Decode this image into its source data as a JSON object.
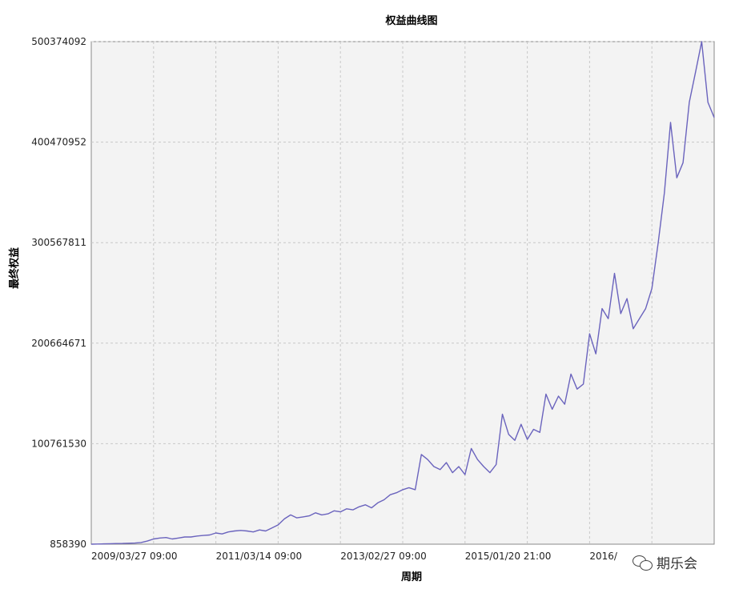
{
  "chart_data": {
    "type": "line",
    "title": "权益曲线图",
    "xlabel": "周期",
    "ylabel": "最终权益",
    "x_ticks": [
      "2009/03/27 09:00",
      "2011/03/14 09:00",
      "2013/02/27 09:00",
      "2015/01/20 21:00",
      "2016/"
    ],
    "y_ticks": [
      858390,
      100761530,
      200664671,
      300567811,
      400470952,
      500374092
    ],
    "ylim": [
      858390,
      500374092
    ],
    "grid": true,
    "series": [
      {
        "color": "#6a63bd",
        "x": [
          0,
          1,
          2,
          3,
          4,
          5,
          6,
          7,
          8,
          9,
          10,
          11,
          12,
          13,
          14,
          15,
          16,
          17,
          18,
          19,
          20,
          21,
          22,
          23,
          24,
          25,
          26,
          27,
          28,
          29,
          30,
          31,
          32,
          33,
          34,
          35,
          36,
          37,
          38,
          39,
          40,
          41,
          42,
          43,
          44,
          45,
          46,
          47,
          48,
          49,
          50,
          51,
          52,
          53,
          54,
          55,
          56,
          57,
          58,
          59,
          60,
          61,
          62,
          63,
          64,
          65,
          66,
          67,
          68,
          69,
          70,
          71,
          72,
          73,
          74,
          75,
          76,
          77,
          78,
          79,
          80,
          81,
          82,
          83,
          84,
          85,
          86,
          87,
          88,
          89,
          90,
          91,
          92,
          93,
          94,
          95,
          96,
          97,
          98,
          99,
          100
        ],
        "values": [
          858390,
          1000000,
          1200000,
          1300000,
          1500000,
          1600000,
          1800000,
          2000000,
          2500000,
          4000000,
          6000000,
          7000000,
          7500000,
          6000000,
          7000000,
          8000000,
          8000000,
          9000000,
          9500000,
          10000000,
          12000000,
          11000000,
          13000000,
          14000000,
          14500000,
          14000000,
          13000000,
          15000000,
          14000000,
          17000000,
          20000000,
          26000000,
          30000000,
          27000000,
          28000000,
          29000000,
          32000000,
          30000000,
          31000000,
          34000000,
          33000000,
          36000000,
          35000000,
          38000000,
          40000000,
          37000000,
          42000000,
          45000000,
          50000000,
          52000000,
          55000000,
          57000000,
          55000000,
          90000000,
          85000000,
          78000000,
          75000000,
          82000000,
          72000000,
          78000000,
          70000000,
          96000000,
          85000000,
          78000000,
          72000000,
          80000000,
          130000000,
          110000000,
          104000000,
          120000000,
          105000000,
          115000000,
          112000000,
          150000000,
          135000000,
          148000000,
          140000000,
          170000000,
          155000000,
          160000000,
          210000000,
          190000000,
          235000000,
          225000000,
          270000000,
          230000000,
          245000000,
          215000000,
          225000000,
          235000000,
          255000000,
          300000000,
          350000000,
          420000000,
          365000000,
          380000000,
          440000000,
          470000000,
          500374092,
          440000000,
          425000000
        ]
      }
    ]
  },
  "watermark": {
    "text": "期乐会"
  }
}
